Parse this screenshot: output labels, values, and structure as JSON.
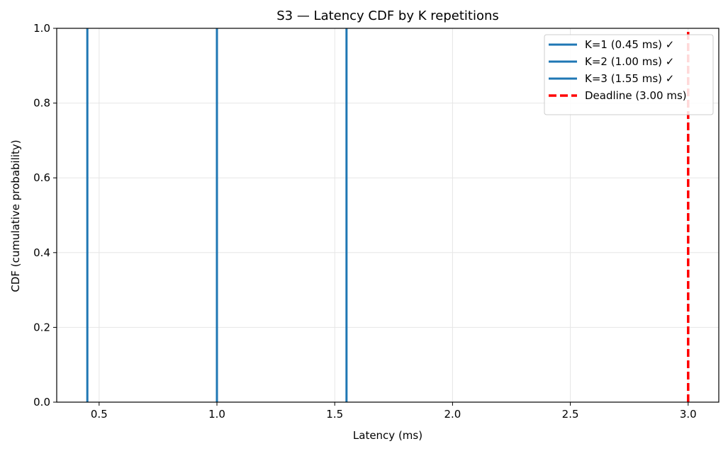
{
  "chart_data": {
    "type": "line",
    "title": "S3 — Latency CDF by K repetitions",
    "xlabel": "Latency (ms)",
    "ylabel": "CDF (cumulative probability)",
    "xlim": [
      0.32,
      3.13
    ],
    "ylim": [
      0.0,
      1.0
    ],
    "xticks": [
      0.5,
      1.0,
      1.5,
      2.0,
      2.5,
      3.0
    ],
    "xtick_labels": [
      "0.5",
      "1.0",
      "1.5",
      "2.0",
      "2.5",
      "3.0"
    ],
    "yticks": [
      0.0,
      0.2,
      0.4,
      0.6,
      0.8,
      1.0
    ],
    "ytick_labels": [
      "0.0",
      "0.2",
      "0.4",
      "0.6",
      "0.8",
      "1.0"
    ],
    "grid": true,
    "legend_position": "top-right",
    "series": [
      {
        "name": "K=1 (0.45 ms) ✓",
        "x": [
          0.45,
          0.45
        ],
        "y": [
          0.0,
          1.0
        ],
        "color": "#1f77b4",
        "style": "solid"
      },
      {
        "name": "K=2 (1.00 ms) ✓",
        "x": [
          1.0,
          1.0
        ],
        "y": [
          0.0,
          1.0
        ],
        "color": "#1f77b4",
        "style": "solid"
      },
      {
        "name": "K=3 (1.55 ms) ✓",
        "x": [
          1.55,
          1.55
        ],
        "y": [
          0.0,
          1.0
        ],
        "color": "#1f77b4",
        "style": "solid"
      },
      {
        "name": "Deadline (3.00 ms)",
        "x": [
          3.0,
          3.0
        ],
        "y": [
          0.0,
          1.0
        ],
        "color": "#ff0000",
        "style": "dashed"
      }
    ]
  }
}
